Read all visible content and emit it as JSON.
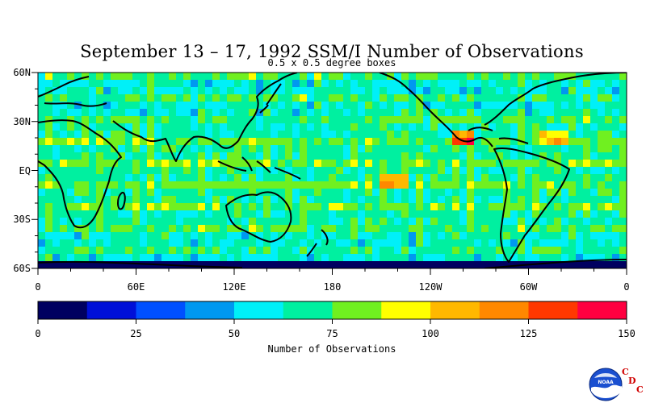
{
  "title": "September 13 – 17, 1992 SSM/I Number of Observations",
  "subtitle": "0.5 x 0.5 degree boxes",
  "map": {
    "type": "heatmap",
    "lat_labels": [
      "60N",
      "30N",
      "EQ",
      "30S",
      "60S"
    ],
    "lon_labels": [
      "0",
      "60E",
      "120E",
      "180",
      "120W",
      "60W",
      "0"
    ],
    "lat_range": [
      -60,
      60
    ],
    "lon_range": [
      0,
      360
    ]
  },
  "colorbar": {
    "colors": [
      "#000060",
      "#0010d8",
      "#0050ff",
      "#0098f0",
      "#00f0f8",
      "#00f0a0",
      "#70f020",
      "#ffff00",
      "#ffb800",
      "#ff8800",
      "#ff3800",
      "#ff0040"
    ],
    "tick_labels": [
      "0",
      "25",
      "50",
      "75",
      "100",
      "125",
      "150"
    ],
    "range": [
      0,
      150
    ],
    "title": "Number of Observations"
  },
  "logo": {
    "text": "NOAA",
    "cdc_letters": [
      "C",
      "D",
      "C"
    ]
  }
}
